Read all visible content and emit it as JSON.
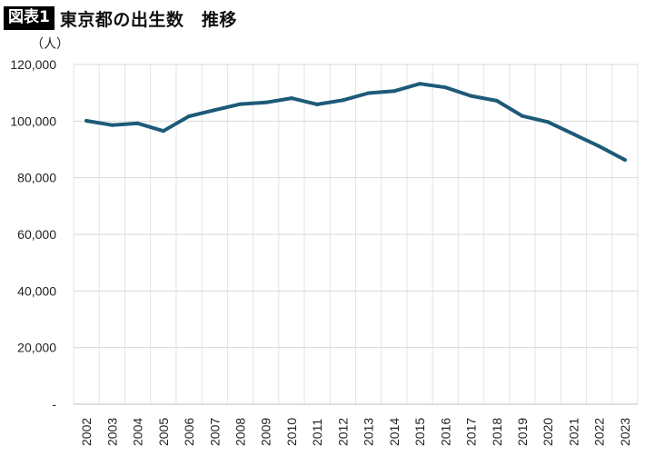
{
  "header": {
    "badge": "図表1",
    "title": "東京都の出生数　推移"
  },
  "chart_data": {
    "type": "line",
    "title": "東京都の出生数　推移",
    "ylabel": "（人）",
    "xlabel": "",
    "x": [
      "2002",
      "2003",
      "2004",
      "2005",
      "2006",
      "2007",
      "2008",
      "2009",
      "2010",
      "2011",
      "2012",
      "2013",
      "2014",
      "2015",
      "2016",
      "2017",
      "2018",
      "2019",
      "2020",
      "2021",
      "2022",
      "2023"
    ],
    "series": [
      {
        "name": "",
        "values": [
          100100,
          98600,
          99200,
          96500,
          101700,
          103900,
          106000,
          106600,
          108100,
          105900,
          107400,
          109900,
          110600,
          113200,
          111900,
          108900,
          107200,
          101800,
          99700,
          95400,
          91100,
          86300
        ]
      }
    ],
    "ylim": [
      0,
      120000
    ],
    "yticks": [
      0,
      20000,
      40000,
      60000,
      80000,
      100000,
      120000
    ],
    "ytick_labels": [
      "-",
      "20,000",
      "40,000",
      "60,000",
      "80,000",
      "100,000",
      "120,000"
    ],
    "grid": true,
    "legend": "none",
    "line_color": "#1d5a78"
  }
}
